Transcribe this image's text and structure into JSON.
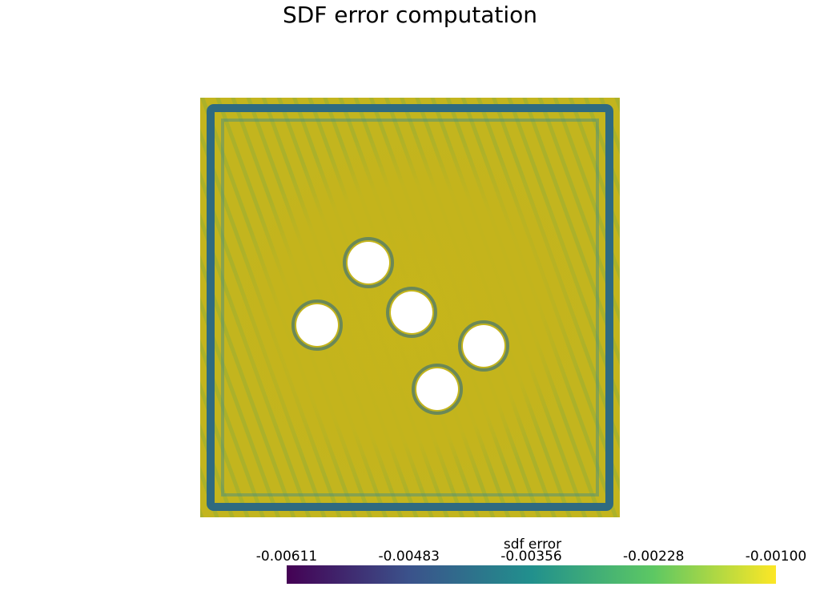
{
  "title": "SDF error computation",
  "colorbar": {
    "title": "sdf error",
    "ticks": [
      "-0.00611",
      "-0.00483",
      "-0.00356",
      "-0.00228",
      "-0.00100"
    ],
    "min": -0.00611,
    "max": -0.001,
    "colormap": "viridis",
    "colors": [
      "#440154",
      "#3b528b",
      "#21908d",
      "#5dc863",
      "#fde725"
    ]
  },
  "plot": {
    "background_color": "#c3b51e",
    "edge_color": "#2f6a80",
    "hole_color": "#ffffff",
    "hole_count": 5
  }
}
